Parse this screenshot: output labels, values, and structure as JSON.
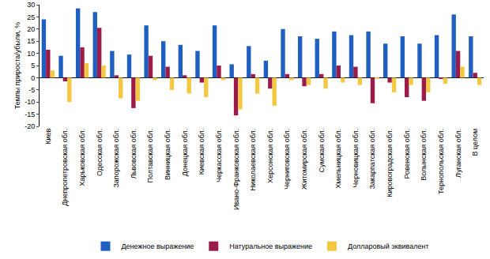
{
  "chart_data": {
    "type": "bar",
    "y_label": "Темпы прироста/убыли, %",
    "categories": [
      "Киев",
      "Днепропетровская обл.",
      "Харьковская обл.",
      "Одесская обл.",
      "Запорожская обл.",
      "Львовская обл.",
      "Полтавская обл.",
      "Винницкая обл.",
      "Донецкая обл.",
      "Киевская обл.",
      "Черкасская обл.",
      "Ивано-Франковская обл.",
      "Николаевская обл.",
      "Херсонская обл.",
      "Черниговская обл.",
      "Житомирская обл.",
      "Сумская обл.",
      "Хмельницкая обл.",
      "Черновицкая обл.",
      "Закарпатская обл.",
      "Кировоградская обл.",
      "Ровенская обл.",
      "Волынская обл.",
      "Тернопольская обл.",
      "Луганская обл.",
      "В целом"
    ],
    "series": [
      {
        "name": "Денежное выражение",
        "color": "#1f5fbf",
        "values": [
          24,
          9,
          28.5,
          27,
          11,
          9.5,
          21.5,
          15,
          13.5,
          11,
          21.5,
          5.5,
          13,
          7,
          20,
          17,
          16,
          19,
          17.5,
          19,
          14,
          17,
          14,
          17.5,
          26,
          17
        ]
      },
      {
        "name": "Натуральное выражение",
        "color": "#9b1b4b",
        "values": [
          11.5,
          -1.5,
          12.5,
          20.5,
          1,
          -12.5,
          9,
          4.5,
          1,
          -2,
          5,
          -15.5,
          1.5,
          -4.5,
          1.5,
          -3.5,
          1.5,
          5,
          4.5,
          -10.5,
          -2,
          -8,
          -9.5,
          -0.5,
          11,
          2
        ]
      },
      {
        "name": "Долларовый эквивалент",
        "color": "#f5c842",
        "values": [
          3,
          -10,
          6,
          5,
          -8.5,
          -9.5,
          -1,
          -5,
          -6.5,
          -8,
          -1,
          -13,
          -6.5,
          -11.5,
          -1,
          -3,
          -4.5,
          -2,
          -3,
          -0.5,
          -6,
          -3,
          -6,
          -2.5,
          4.5,
          -3
        ]
      }
    ],
    "ylim": [
      -20,
      30
    ],
    "yticks": [
      -20,
      -15,
      -10,
      -5,
      0,
      5,
      10,
      15,
      20,
      25,
      30
    ],
    "grid": false,
    "legend": "bottom"
  }
}
